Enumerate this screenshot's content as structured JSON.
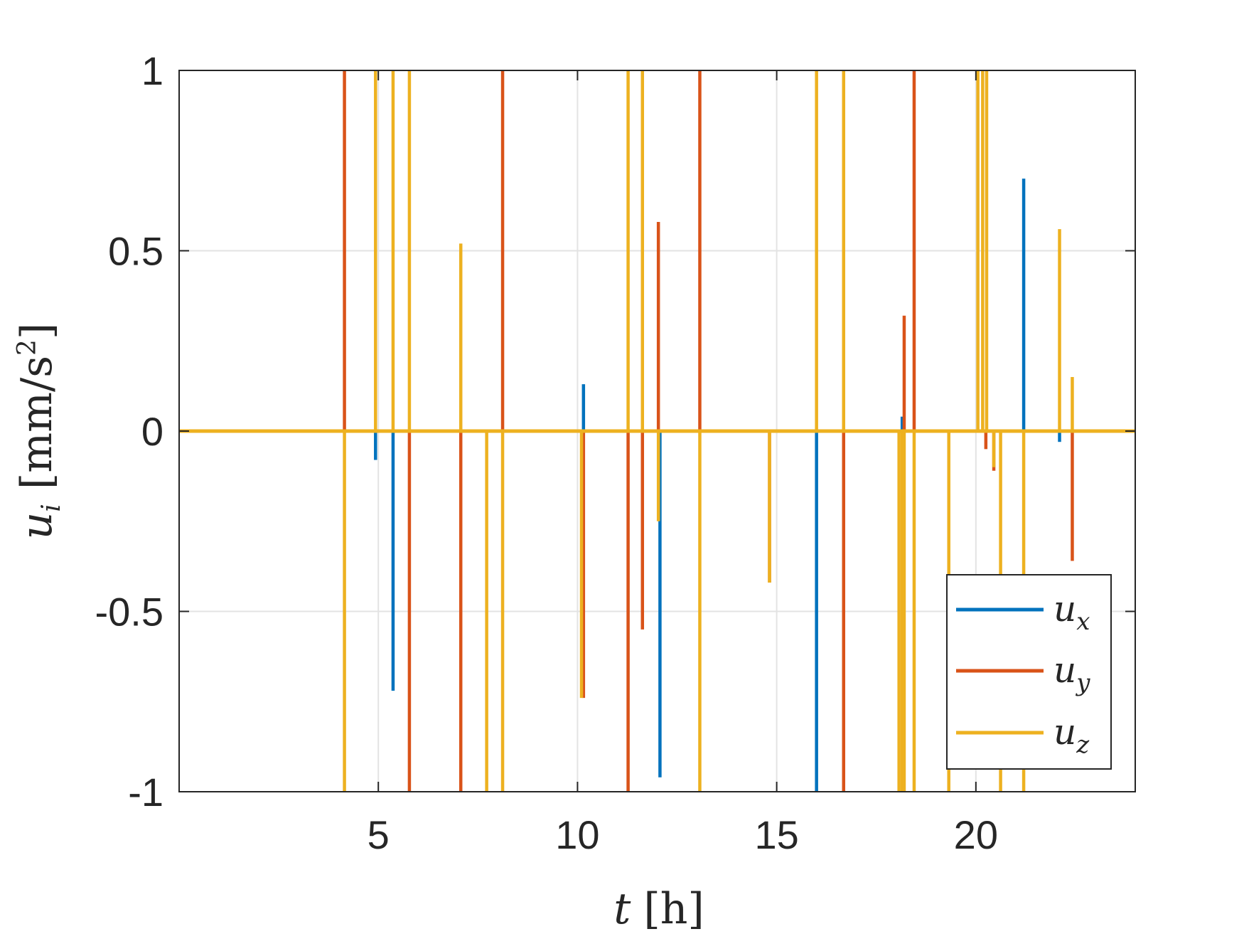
{
  "chart_data": {
    "type": "line",
    "title": "",
    "xlabel": {
      "symbol": "t",
      "unit": "[h]"
    },
    "ylabel": {
      "symbol": "u",
      "subscript": "i",
      "unit": "[mm/s",
      "unit_power": "2",
      "unit_close": "]"
    },
    "xlim": [
      0,
      24
    ],
    "ylim": [
      -1,
      1
    ],
    "xticks": [
      5,
      10,
      15,
      20
    ],
    "xtick_labels": [
      "5",
      "10",
      "15",
      "20"
    ],
    "yticks": [
      1,
      0.5,
      0,
      -0.5,
      -1
    ],
    "ytick_labels": [
      "1",
      "0.5",
      "0",
      "-0.5",
      "-1"
    ],
    "grid": true,
    "legend_position": "bottom-right",
    "series": [
      {
        "name": "u_x",
        "label_base": "u",
        "label_sub": "x",
        "color": "#0072BD",
        "impulses": [
          [
            4.93,
            -0.08
          ],
          [
            5.37,
            -0.72
          ],
          [
            10.15,
            0.13
          ],
          [
            12.07,
            -0.96
          ],
          [
            16.0,
            -1
          ],
          [
            18.15,
            0.04
          ],
          [
            21.2,
            0.7
          ],
          [
            22.1,
            -0.03
          ]
        ]
      },
      {
        "name": "u_y",
        "label_base": "u",
        "label_sub": "y",
        "color": "#D95319",
        "impulses": [
          [
            4.15,
            1
          ],
          [
            5.78,
            -1
          ],
          [
            7.07,
            -1
          ],
          [
            8.12,
            1
          ],
          [
            10.15,
            -0.74
          ],
          [
            11.27,
            -1
          ],
          [
            11.63,
            -0.55
          ],
          [
            12.03,
            0.58
          ],
          [
            13.07,
            1
          ],
          [
            14.82,
            -0.42
          ],
          [
            16.68,
            -1
          ],
          [
            18.2,
            0.32
          ],
          [
            18.45,
            1
          ],
          [
            20.25,
            -0.05
          ],
          [
            20.45,
            -0.11
          ],
          [
            22.42,
            -0.36
          ]
        ]
      },
      {
        "name": "u_z",
        "label_base": "u",
        "label_sub": "z",
        "color": "#EDB120",
        "impulses": [
          [
            4.15,
            -1
          ],
          [
            4.93,
            1
          ],
          [
            5.37,
            1
          ],
          [
            5.78,
            1
          ],
          [
            7.07,
            0.52
          ],
          [
            7.72,
            -1
          ],
          [
            8.12,
            -1
          ],
          [
            10.1,
            -0.74
          ],
          [
            11.27,
            1
          ],
          [
            11.63,
            1
          ],
          [
            12.03,
            -0.25
          ],
          [
            13.07,
            -1
          ],
          [
            14.82,
            -0.42
          ],
          [
            16.0,
            1
          ],
          [
            16.68,
            1
          ],
          [
            18.07,
            -1
          ],
          [
            18.15,
            -1
          ],
          [
            18.2,
            -1
          ],
          [
            18.45,
            -1
          ],
          [
            19.32,
            -1
          ],
          [
            20.05,
            1
          ],
          [
            20.17,
            1
          ],
          [
            20.27,
            1
          ],
          [
            20.45,
            -0.1
          ],
          [
            20.62,
            -1
          ],
          [
            21.2,
            -1
          ],
          [
            22.1,
            0.56
          ],
          [
            22.42,
            0.15
          ]
        ]
      }
    ]
  }
}
